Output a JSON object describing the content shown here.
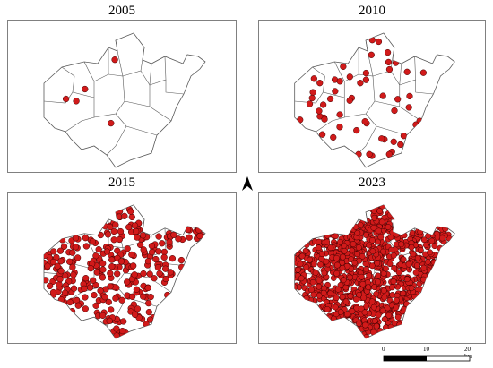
{
  "panels": [
    {
      "id": "p2005",
      "title": "2005",
      "point_count": 5
    },
    {
      "id": "p2010",
      "title": "2010",
      "point_count": 55
    },
    {
      "id": "p2015",
      "title": "2015",
      "point_count": 300
    },
    {
      "id": "p2023",
      "title": "2023",
      "point_count": 900
    }
  ],
  "north_arrow": {
    "icon": "north-arrow-icon"
  },
  "scale_bar": {
    "ticks": [
      "0",
      "10",
      "20 km"
    ]
  },
  "colors": {
    "point_fill": "#d11a1a",
    "point_stroke": "#3a0000",
    "boundary": "#5a5a5a",
    "frame": "#808080"
  }
}
